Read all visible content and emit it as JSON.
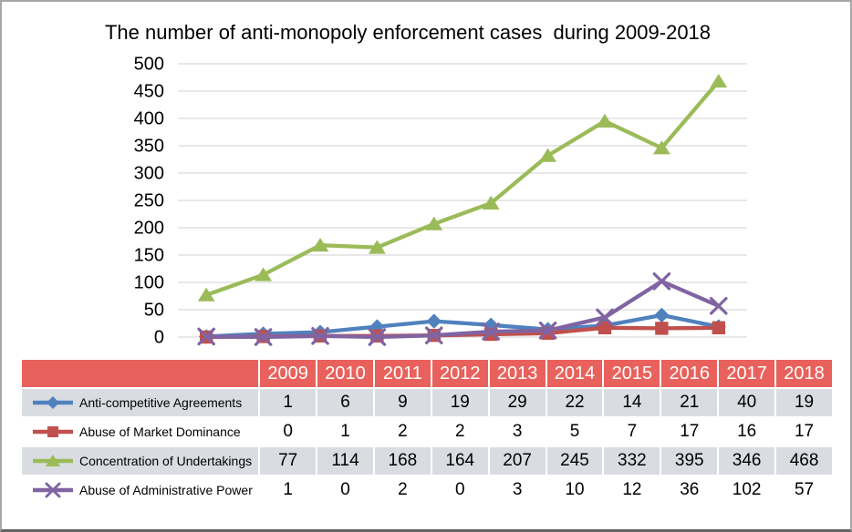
{
  "frame": {
    "background": "#FFFFFF",
    "border_color": "#A6A6A6",
    "border_bottom_color": "#636363"
  },
  "chart_data": {
    "type": "line",
    "title": "The number of anti-monopoly enforcement cases  during 2009-2018",
    "categories": [
      "2009",
      "2010",
      "2011",
      "2012",
      "2013",
      "2014",
      "2015",
      "2016",
      "2017",
      "2018"
    ],
    "series": [
      {
        "name": "Anti-competitive Agreements",
        "color": "#4F81BD",
        "marker": "diamond",
        "values": [
          1,
          6,
          9,
          19,
          29,
          22,
          14,
          21,
          40,
          19
        ]
      },
      {
        "name": "Abuse of Market Dominance",
        "color": "#C0504D",
        "marker": "square",
        "values": [
          0,
          1,
          2,
          2,
          3,
          5,
          7,
          17,
          16,
          17
        ]
      },
      {
        "name": "Concentration of Undertakings",
        "color": "#9BBB59",
        "marker": "triangle",
        "values": [
          77,
          114,
          168,
          164,
          207,
          245,
          332,
          395,
          346,
          468
        ]
      },
      {
        "name": "Abuse of Administrative Power",
        "color": "#8064A2",
        "marker": "x",
        "values": [
          1,
          0,
          2,
          0,
          3,
          10,
          12,
          36,
          102,
          57
        ]
      }
    ],
    "ylim": [
      0,
      500
    ],
    "ytick_step": 50,
    "xlabel": "",
    "ylabel": "",
    "grid": "horizontal-only",
    "gridline_color": "#D9D9D9",
    "tick_label_color": "#000000",
    "legend_position": "table-rows-left"
  },
  "table": {
    "header_bg": "#E9615C",
    "header_text_color": "#FFFFFF",
    "stripe_row_bg": "#D9DDE2",
    "plain_row_bg": "#FFFFFF",
    "value_text_color": "#000000"
  }
}
